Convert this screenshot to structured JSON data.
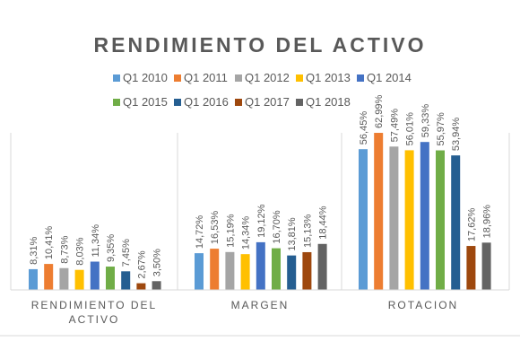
{
  "chart_data": {
    "type": "bar",
    "title": "RENDIMIENTO DEL ACTIVO",
    "categories": [
      [
        "RENDIMIENTO DEL",
        "ACTIVO"
      ],
      [
        "MARGEN"
      ],
      [
        "ROTACION"
      ]
    ],
    "series": [
      {
        "name": "Q1 2010",
        "color": "#5B9BD5",
        "values": [
          8.31,
          14.72,
          56.45
        ],
        "labels": [
          "8,31%",
          "14,72%",
          "56,45%"
        ]
      },
      {
        "name": "Q1 2011",
        "color": "#ED7D31",
        "values": [
          10.41,
          16.53,
          62.99
        ],
        "labels": [
          "10,41%",
          "16,53%",
          "62,99%"
        ]
      },
      {
        "name": "Q1 2012",
        "color": "#A5A5A5",
        "values": [
          8.73,
          15.19,
          57.49
        ],
        "labels": [
          "8,73%",
          "15,19%",
          "57,49%"
        ]
      },
      {
        "name": "Q1 2013",
        "color": "#FFC000",
        "values": [
          8.03,
          14.34,
          56.01
        ],
        "labels": [
          "8,03%",
          "14,34%",
          "56,01%"
        ]
      },
      {
        "name": "Q1 2014",
        "color": "#4472C4",
        "values": [
          11.34,
          19.12,
          59.33
        ],
        "labels": [
          "11,34%",
          "19,12%",
          "59,33%"
        ]
      },
      {
        "name": "Q1 2015",
        "color": "#70AD47",
        "values": [
          9.35,
          16.7,
          55.97
        ],
        "labels": [
          "9,35%",
          "16,70%",
          "55,97%"
        ]
      },
      {
        "name": "Q1 2016",
        "color": "#255E91",
        "values": [
          7.45,
          13.81,
          53.94
        ],
        "labels": [
          "7,45%",
          "13,81%",
          "53,94%"
        ]
      },
      {
        "name": "Q1 2017",
        "color": "#9E480E",
        "values": [
          2.67,
          15.13,
          17.62
        ],
        "labels": [
          "2,67%",
          "15,13%",
          "17,62%"
        ]
      },
      {
        "name": "Q1 2018",
        "color": "#636363",
        "values": [
          3.5,
          18.44,
          18.96
        ],
        "labels": [
          "3,50%",
          "18,44%",
          "18,96%"
        ]
      }
    ],
    "ylim": [
      0,
      63
    ],
    "grid": false,
    "legend_position": "top"
  }
}
